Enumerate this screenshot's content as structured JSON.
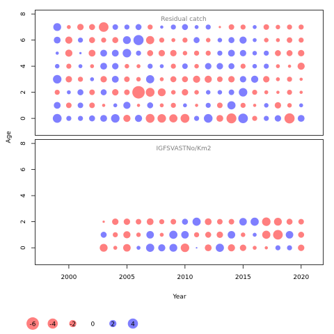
{
  "chart_data": {
    "type": "scatter",
    "subtype": "bubble",
    "xlabel": "Year",
    "ylabel": "Age",
    "x_ticks": [
      2000,
      2005,
      2010,
      2015,
      2020
    ],
    "y_ticks": [
      0,
      2,
      4,
      6,
      8
    ],
    "xlim": [
      1997.1,
      2021.9
    ],
    "positive_color": "#0000ff",
    "negative_color": "#ff0000",
    "panels": [
      {
        "title": "Residual catch",
        "ylim": [
          -1.3,
          8.3
        ],
        "ages": [
          0,
          1,
          2,
          3,
          4,
          5,
          6,
          7
        ],
        "years": [
          1999,
          2000,
          2001,
          2002,
          2003,
          2004,
          2005,
          2006,
          2007,
          2008,
          2009,
          2010,
          2011,
          2012,
          2013,
          2014,
          2015,
          2016,
          2017,
          2018,
          2019,
          2020
        ],
        "residuals": [
          [
            3.0,
            1.0,
            1.0,
            1.4,
            1.8,
            2.8,
            -2.0,
            2.0,
            -3.0,
            -2.8,
            -2.6,
            -3.0,
            1.0,
            2.9,
            -1.8,
            -3.8,
            3.6,
            -1.0,
            1.0,
            1.6,
            -4.0,
            1.8
          ],
          [
            1.8,
            -1.2,
            1.2,
            -1.2,
            -0.4,
            0.6,
            2.0,
            -0.4,
            1.4,
            -0.6,
            -1.0,
            0.6,
            -0.4,
            1.0,
            -1.2,
            2.6,
            -1.0,
            -0.4,
            0.8,
            -1.6,
            -0.8,
            0.6
          ],
          [
            -1.0,
            0.6,
            1.4,
            -1.2,
            1.4,
            -1.6,
            -1.2,
            -6.0,
            -3.0,
            -2.4,
            -0.8,
            -1.6,
            -0.8,
            0.8,
            0.8,
            1.2,
            2.8,
            -1.0,
            -0.6,
            -0.4,
            -1.0,
            -0.4
          ],
          [
            2.8,
            -1.6,
            -1.0,
            0.6,
            -1.6,
            1.8,
            -1.2,
            -0.8,
            2.6,
            -0.6,
            -1.4,
            -1.4,
            -2.0,
            -2.0,
            -1.2,
            -1.6,
            1.6,
            2.0,
            -1.6,
            -0.6,
            -1.0,
            -0.4
          ],
          [
            0.8,
            -1.0,
            0.6,
            -0.6,
            1.8,
            1.6,
            -0.8,
            -0.6,
            1.0,
            0.6,
            -1.0,
            1.2,
            -0.8,
            1.6,
            1.6,
            1.4,
            -1.0,
            0.8,
            1.0,
            -0.6,
            -0.4,
            -2.0
          ],
          [
            0.4,
            -2.0,
            0.2,
            -1.8,
            1.8,
            1.8,
            2.8,
            1.0,
            -1.4,
            -1.6,
            -1.6,
            -0.8,
            -1.0,
            -1.0,
            1.0,
            1.8,
            1.6,
            0.8,
            1.0,
            -1.4,
            -1.4,
            -1.6
          ],
          [
            1.8,
            -2.0,
            1.0,
            -1.4,
            -1.0,
            -1.4,
            2.4,
            4.0,
            -2.6,
            -1.0,
            -0.6,
            -1.0,
            1.4,
            -0.8,
            0.8,
            1.4,
            2.0,
            0.6,
            -0.8,
            -0.6,
            -1.2,
            -1.0
          ],
          [
            2.4,
            -0.6,
            -1.6,
            -1.4,
            -3.6,
            1.2,
            1.0,
            1.4,
            -1.0,
            0.4,
            1.0,
            1.4,
            0.6,
            1.0,
            -0.2,
            -1.2,
            -1.0,
            0.6,
            -1.2,
            -0.8,
            -1.0,
            -1.0
          ]
        ]
      },
      {
        "title": "IGFSVASTNo/Km2",
        "ylim": [
          -1.3,
          8.3
        ],
        "ages": [
          0,
          1,
          2
        ],
        "years": [
          2003,
          2004,
          2005,
          2006,
          2007,
          2008,
          2009,
          2010,
          2011,
          2012,
          2013,
          2014,
          2015,
          2016,
          2017,
          2018,
          2019,
          2020
        ],
        "residuals": [
          [
            -2.4,
            -0.6,
            -2.2,
            0.6,
            2.6,
            2.0,
            2.4,
            -2.8,
            0.1,
            -1.8,
            2.6,
            -2.0,
            -1.6,
            -0.6,
            -0.4,
            1.0,
            1.0,
            -1.6
          ],
          [
            1.4,
            -1.0,
            -2.0,
            -0.8,
            2.2,
            -0.6,
            2.6,
            2.2,
            -1.0,
            -1.4,
            -1.6,
            2.2,
            -0.8,
            0.6,
            -2.6,
            -3.6,
            2.2,
            -1.4
          ],
          [
            -0.2,
            -1.6,
            -1.6,
            -1.2,
            -1.8,
            -1.0,
            -1.2,
            1.4,
            2.6,
            -1.8,
            -1.2,
            -1.2,
            2.2,
            2.6,
            -2.8,
            -2.4,
            -1.4,
            -1.2
          ]
        ]
      }
    ],
    "legend": {
      "placement": "bottom-left",
      "values": [
        -6,
        -4,
        -2,
        0,
        2,
        4
      ],
      "labels": [
        "-6",
        "-4",
        "-2",
        "0",
        "2",
        "4"
      ]
    }
  }
}
